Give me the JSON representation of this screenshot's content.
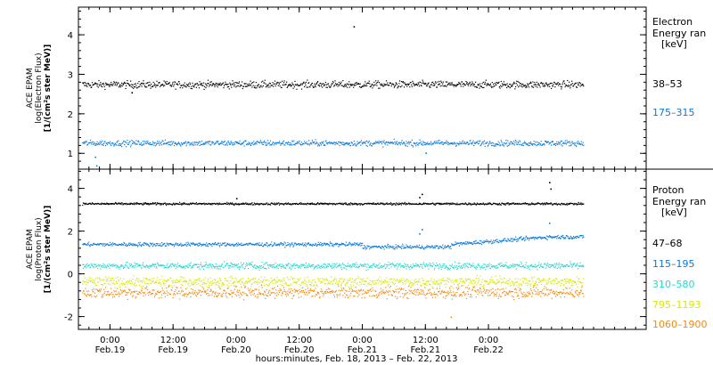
{
  "chart_data": [
    {
      "type": "scatter",
      "panel": "electron",
      "ylabel_lines": [
        "ACE EPAM",
        "log(Electron Flux)",
        "[1/(cm²s ster MeV)]"
      ],
      "ylim": [
        0.6,
        4.7
      ],
      "yticks": [
        1,
        2,
        3,
        4
      ],
      "legend_title": [
        "Electron",
        "Energy ran",
        "[keV]"
      ],
      "series": [
        {
          "name": "38–53",
          "color": "#000000",
          "base": 2.75,
          "noise": 0.09,
          "outliers": [
            {
              "x": 1.93,
              "y": 4.22
            },
            {
              "x": 0.17,
              "y": 2.55
            }
          ]
        },
        {
          "name": "175–315",
          "color": "#0a7ad8",
          "base": 1.27,
          "noise": 0.07,
          "outliers": [
            {
              "x": -0.12,
              "y": 0.92
            },
            {
              "x": -0.11,
              "y": 0.7
            },
            {
              "x": 2.5,
              "y": 1.02
            }
          ]
        }
      ]
    },
    {
      "type": "scatter",
      "panel": "proton",
      "ylabel_lines": [
        "ACE EPAM",
        "log(Proton Flux)",
        "[1/(cm²s ster MeV)]"
      ],
      "ylim": [
        -2.6,
        4.9
      ],
      "yticks": [
        -2,
        0,
        2,
        4
      ],
      "legend_title": [
        "Proton",
        "Energy ran",
        "[keV]"
      ],
      "series": [
        {
          "name": "47–68",
          "color": "#000000",
          "base": 3.3,
          "noise": 0.05,
          "events": [
            {
              "x": 1.0,
              "y": 3.55
            },
            {
              "x": 2.45,
              "y": 3.6
            },
            {
              "x": 2.47,
              "y": 3.75
            },
            {
              "x": 3.48,
              "y": 4.3
            },
            {
              "x": 3.49,
              "y": 4.0
            }
          ]
        },
        {
          "name": "115–195",
          "color": "#0a7ad8",
          "base": 1.4,
          "noise": 0.09,
          "events": [
            {
              "x": 2.45,
              "y": 1.9
            },
            {
              "x": 2.47,
              "y": 2.1
            },
            {
              "x": 3.48,
              "y": 2.4
            }
          ]
        },
        {
          "name": "310–580",
          "color": "#22d8cc",
          "base": 0.4,
          "noise": 0.15,
          "events": []
        },
        {
          "name": "795–1193",
          "color": "#d8e800",
          "base": -0.35,
          "noise": 0.22,
          "events": []
        },
        {
          "name": "1060–1900",
          "color": "#f08a10",
          "base": -0.85,
          "noise": 0.26,
          "events": [
            {
              "x": 2.7,
              "y": -2.0
            }
          ]
        }
      ]
    }
  ],
  "x_axis": {
    "xlim": [
      -0.25,
      4.25
    ],
    "ticks": [
      {
        "time": "0:00",
        "date": "Feb.19"
      },
      {
        "time": "12:00",
        "date": "Feb.19"
      },
      {
        "time": "0:00",
        "date": "Feb.20"
      },
      {
        "time": "12:00",
        "date": "Feb.20"
      },
      {
        "time": "0:00",
        "date": "Feb.21"
      },
      {
        "time": "12:00",
        "date": "Feb.21"
      },
      {
        "time": "0:00",
        "date": "Feb.22"
      }
    ],
    "xlabel": "hours:minutes, Feb. 18, 2013 – Feb. 22, 2013",
    "data_start": -0.22,
    "data_end": 3.75
  }
}
